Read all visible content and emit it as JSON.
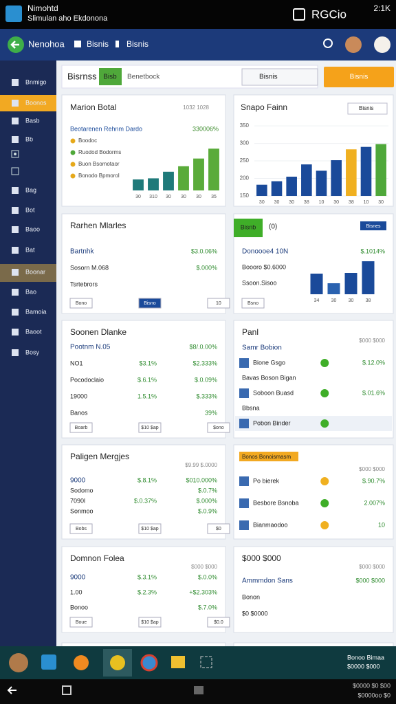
{
  "status_bar": {
    "app_title": "Nimohtd",
    "app_subtitle": "Slimulan aho Ekdonona",
    "right_text": "RGCio",
    "time": "2:1K"
  },
  "header": {
    "title": "Nenohoa",
    "tab_1": "Bisnis",
    "tab_2": "Bisnis"
  },
  "sidebar": {
    "items": [
      "Bnmigo",
      "Boonos",
      "Basb",
      "Bb",
      "Bag",
      "Bot",
      "Baoo",
      "Bat",
      "Boonar",
      "Bao",
      "Bamoia",
      "Baoot",
      "Bosy"
    ]
  },
  "toolbar": {
    "title": "Bisrnss",
    "chip": "Bisb",
    "label": "Benetbock",
    "dropdown": "Bisnis",
    "button": "Bisnis"
  },
  "chart_data": [
    {
      "type": "bar",
      "title": "Marion Botal",
      "meta": "1032 1028",
      "legend_title": "Beotarenen Rehnm Dardo",
      "legend_value": "330006%",
      "legend_items": [
        "Boodoc",
        "Ruodod Bodorms",
        "Buon Bsomotaor",
        "Bonodo Bpmorol"
      ],
      "legend_colors": [
        "#e6a91a",
        "#4fa83a",
        "#e6a91a",
        "#e6a91a"
      ],
      "categories": [
        "30",
        "310",
        "30",
        "30",
        "30",
        "35"
      ],
      "values": [
        20,
        22,
        34,
        44,
        58,
        76
      ],
      "colors": [
        "#1f7a7a",
        "#1f7a7a",
        "#1f7a7a",
        "#5aab3a",
        "#5aab3a",
        "#5aab3a"
      ],
      "ylim": [
        0,
        100
      ]
    },
    {
      "type": "bar",
      "title": "Snapo Fainn",
      "meta": "Bisnis",
      "categories": [
        "30",
        "30",
        "30",
        "38",
        "10",
        "30",
        "38",
        "10",
        "30"
      ],
      "values": [
        182,
        192,
        205,
        240,
        222,
        252,
        283,
        290,
        298
      ],
      "colors": [
        "#1a4a9a",
        "#1a4a9a",
        "#1a4a9a",
        "#1a4a9a",
        "#1a4a9a",
        "#1a4a9a",
        "#f0b020",
        "#1a4a9a",
        "#4fa83a"
      ],
      "ylim": [
        150,
        360
      ],
      "yticks": [
        150,
        200,
        250,
        300,
        350
      ]
    },
    {
      "type": "bar",
      "title": "Bisnb",
      "meta": "(0)",
      "categories": [
        "34",
        "30",
        "30",
        "38"
      ],
      "values": [
        60,
        32,
        62,
        96
      ],
      "colors": [
        "#1a4a9a",
        "#2a62b0",
        "#1a4a9a",
        "#1a4a9a"
      ],
      "ylim": [
        0,
        100
      ]
    }
  ],
  "cards": [
    {
      "title": "Rarhen Mlarles",
      "rows": [
        [
          "Bartnhk",
          "$3.0.06%"
        ],
        [
          "Sosorn M.068",
          "$.000%"
        ],
        [
          "Tsrtebrors"
        ]
      ],
      "buttons": [
        "Bono",
        "Bisno",
        "10"
      ]
    },
    {
      "meta": "Bisnes",
      "rows": [
        [
          "Donoooe4 10N",
          "$.1014%"
        ],
        [
          "Boooro $0.6000"
        ],
        [
          "Ssoon.Sisoo"
        ]
      ],
      "buttons": [
        "Bsno"
      ]
    },
    {
      "title": "Soonen Dlanke",
      "rows": [
        [
          "Pootnm N.05",
          "$8/.0.00%"
        ],
        [
          "NO1",
          "$3.1%",
          "$2.333%"
        ],
        [
          "Pocodoclaio",
          "$.6.1%",
          "$.0.09%"
        ],
        [
          "19000",
          "1.5.1%",
          "$.333%"
        ],
        [
          "Banos",
          "39%"
        ]
      ],
      "buttons": [
        "Boarb",
        "$10 $ap",
        "$ono"
      ]
    },
    {
      "title": "Panl",
      "meta": "$000 $000",
      "rows": [
        [
          "Samr Bobion"
        ],
        [
          "Bione Gsgo",
          "$.12.0%"
        ],
        [
          "Bavas Boson Bigan"
        ],
        [
          "Soboon Buasd",
          "$.01.6%"
        ],
        [
          "Bbsna"
        ],
        [
          "Pobon Binder"
        ]
      ]
    },
    {
      "title": "Paligen Mergjes",
      "meta": "$9.99 $.0000",
      "rows": [
        [
          "9000",
          "$.8.1%",
          "$010.000%"
        ],
        [
          "Sodomo",
          "$.0.7%"
        ],
        [
          "7090l",
          "$.0.37%",
          "$.000%"
        ],
        [
          "Sonmoo",
          "$.0.9%"
        ]
      ],
      "buttons": [
        "Bobs",
        "$10 $ap",
        "$0"
      ]
    },
    {
      "title": "Bonos Bonoismasm",
      "meta": "$000 $000",
      "rows": [
        [
          "Po bierek",
          "$.90.7%"
        ],
        [
          "Besbore Bsnoba",
          "2.007%"
        ],
        [
          "Bianmaodoo",
          "10"
        ]
      ]
    },
    {
      "title": "Domnon Folea",
      "meta": "$000 $000",
      "rows": [
        [
          "9000",
          "$.3.1%",
          "$.0.0%"
        ],
        [
          "1.00",
          "$.2.3%",
          "+$2.303%"
        ],
        [
          "Bonoo",
          "$.7.0%"
        ]
      ],
      "buttons": [
        "Boue",
        "$10 $ap",
        "$0.0"
      ]
    },
    {
      "title": "$000 $000",
      "meta": "$000 $000",
      "rows": [
        [
          "Ammmdon Sans",
          "$000 $000"
        ],
        [
          "Bonon"
        ],
        [
          "$0 $0000"
        ]
      ]
    }
  ],
  "taskbar": {
    "line_1": "Bonoo Bimaa",
    "line_2": "$0000 $000"
  },
  "nav_bar": {
    "line_1": "$0000 $0 $00",
    "line_2": "$0000oo $0"
  }
}
